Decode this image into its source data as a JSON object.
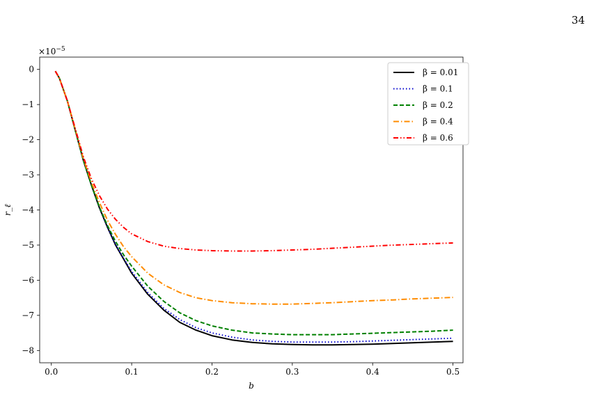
{
  "page_number": "34",
  "chart_data": {
    "type": "line",
    "title": "",
    "xlabel": "b",
    "ylabel": "r_ℓ",
    "multiplier_label": "×10",
    "multiplier_exponent": "−5",
    "xlim": [
      -0.0145,
      0.5125
    ],
    "ylim": [
      -8.35,
      0.35
    ],
    "x_ticks": [
      0.0,
      0.1,
      0.2,
      0.3,
      0.4,
      0.5
    ],
    "x_tick_labels": [
      "0.0",
      "0.1",
      "0.2",
      "0.3",
      "0.4",
      "0.5"
    ],
    "y_ticks": [
      0,
      -1,
      -2,
      -3,
      -4,
      -5,
      -6,
      -7,
      -8
    ],
    "y_tick_labels": [
      "0",
      "−1",
      "−2",
      "−3",
      "−4",
      "−5",
      "−6",
      "−7",
      "−8"
    ],
    "grid": false,
    "legend_position": "top-right",
    "x": [
      0.005,
      0.01,
      0.02,
      0.03,
      0.04,
      0.05,
      0.06,
      0.07,
      0.08,
      0.09,
      0.1,
      0.12,
      0.14,
      0.16,
      0.18,
      0.2,
      0.225,
      0.25,
      0.275,
      0.3,
      0.325,
      0.35,
      0.375,
      0.4,
      0.425,
      0.45,
      0.475,
      0.5
    ],
    "series": [
      {
        "name": "β = 0.01",
        "color": "#000000",
        "dash": "solid",
        "values": [
          -0.05,
          -0.25,
          -0.9,
          -1.75,
          -2.6,
          -3.3,
          -3.95,
          -4.5,
          -5.0,
          -5.4,
          -5.8,
          -6.4,
          -6.85,
          -7.2,
          -7.42,
          -7.58,
          -7.7,
          -7.77,
          -7.81,
          -7.83,
          -7.84,
          -7.84,
          -7.83,
          -7.82,
          -7.8,
          -7.78,
          -7.76,
          -7.74
        ]
      },
      {
        "name": "β = 0.1",
        "color": "#0000cc",
        "dash": "dotted",
        "values": [
          -0.05,
          -0.25,
          -0.9,
          -1.75,
          -2.6,
          -3.3,
          -3.95,
          -4.5,
          -4.98,
          -5.38,
          -5.75,
          -6.35,
          -6.8,
          -7.12,
          -7.35,
          -7.5,
          -7.62,
          -7.7,
          -7.74,
          -7.76,
          -7.76,
          -7.76,
          -7.75,
          -7.73,
          -7.71,
          -7.69,
          -7.67,
          -7.65
        ]
      },
      {
        "name": "β = 0.2",
        "color": "#008000",
        "dash": "dashed",
        "values": [
          -0.05,
          -0.25,
          -0.9,
          -1.75,
          -2.6,
          -3.3,
          -3.93,
          -4.45,
          -4.9,
          -5.28,
          -5.6,
          -6.17,
          -6.6,
          -6.93,
          -7.15,
          -7.3,
          -7.42,
          -7.5,
          -7.53,
          -7.55,
          -7.55,
          -7.55,
          -7.53,
          -7.51,
          -7.49,
          -7.47,
          -7.45,
          -7.42
        ]
      },
      {
        "name": "β = 0.4",
        "color": "#ff8c00",
        "dash": "dashdot",
        "values": [
          -0.05,
          -0.25,
          -0.9,
          -1.72,
          -2.55,
          -3.22,
          -3.8,
          -4.3,
          -4.7,
          -5.05,
          -5.33,
          -5.8,
          -6.13,
          -6.35,
          -6.5,
          -6.58,
          -6.64,
          -6.67,
          -6.68,
          -6.68,
          -6.66,
          -6.64,
          -6.61,
          -6.58,
          -6.56,
          -6.53,
          -6.51,
          -6.49
        ]
      },
      {
        "name": "β = 0.6",
        "color": "#ff0000",
        "dash": "dashdotdot",
        "values": [
          -0.05,
          -0.25,
          -0.9,
          -1.7,
          -2.5,
          -3.12,
          -3.6,
          -3.98,
          -4.27,
          -4.5,
          -4.68,
          -4.9,
          -5.03,
          -5.1,
          -5.14,
          -5.16,
          -5.17,
          -5.17,
          -5.16,
          -5.14,
          -5.12,
          -5.09,
          -5.06,
          -5.03,
          -5.0,
          -4.98,
          -4.96,
          -4.94
        ]
      }
    ]
  }
}
